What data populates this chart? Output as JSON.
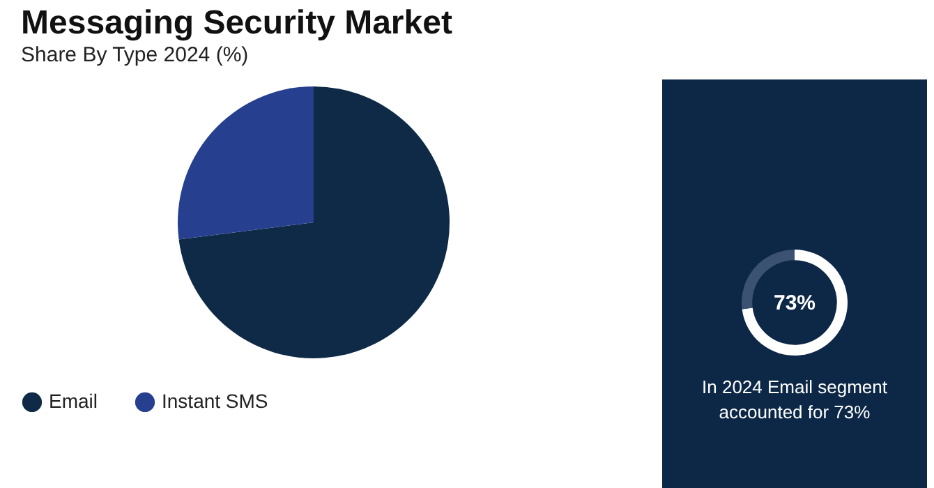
{
  "chart_data": [
    {
      "type": "pie",
      "title": "Messaging Security Market",
      "subtitle": "Share By Type 2024 (%)",
      "categories": [
        "Email",
        "Instant SMS"
      ],
      "values": [
        73,
        27
      ],
      "colors": [
        "#0e2a47",
        "#263f8f"
      ],
      "legend": "bottom"
    },
    {
      "type": "donut",
      "categories": [
        null,
        null
      ],
      "values": [
        73,
        27
      ],
      "colors": [
        "#ffffff",
        "#3b5273"
      ],
      "value_labels": [
        "73%",
        null
      ],
      "annotations": [
        "In 2024 Email segment accounted for 73%"
      ]
    }
  ]
}
